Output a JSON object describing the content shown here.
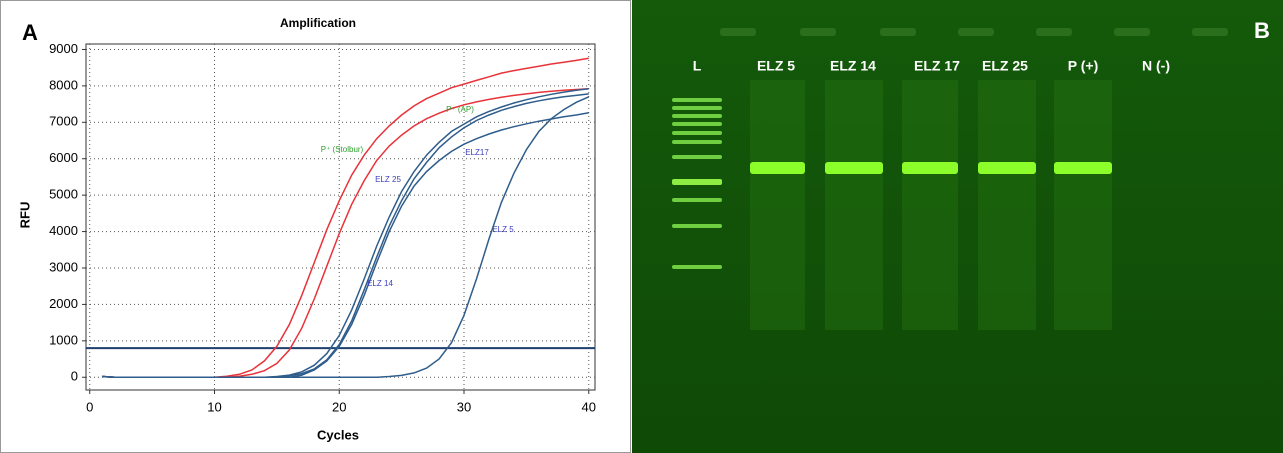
{
  "chart_data": {
    "type": "line",
    "panel_label": "A",
    "title": "Amplification",
    "x_label": "Cycles",
    "y_label": "RFU",
    "x": [
      1,
      2,
      3,
      4,
      5,
      6,
      7,
      8,
      9,
      10,
      11,
      12,
      13,
      14,
      15,
      16,
      17,
      18,
      19,
      20,
      21,
      22,
      23,
      24,
      25,
      26,
      27,
      28,
      29,
      30,
      31,
      32,
      33,
      34,
      35,
      36,
      37,
      38,
      39,
      40
    ],
    "xlim": [
      -0.3,
      40.5
    ],
    "xticks": [
      0,
      10,
      20,
      30,
      40
    ],
    "ylim": [
      -350,
      9150
    ],
    "yticks": [
      0,
      1000,
      2000,
      3000,
      4000,
      5000,
      6000,
      7000,
      8000,
      9000
    ],
    "grid": true,
    "threshold": 800,
    "threshold_color": "#1f3f6e",
    "series": [
      {
        "name": "P⁺ (Stolbur)",
        "color": "#e8333a",
        "label_color": "#2ea02e",
        "values": [
          20,
          0,
          0,
          0,
          0,
          0,
          0,
          0,
          0,
          0,
          30,
          80,
          200,
          450,
          850,
          1450,
          2250,
          3150,
          4050,
          4850,
          5550,
          6100,
          6550,
          6900,
          7200,
          7450,
          7650,
          7800,
          7950,
          8050,
          8150,
          8250,
          8350,
          8420,
          8480,
          8540,
          8600,
          8650,
          8700,
          8760
        ]
      },
      {
        "name": "P⁺ (AP)",
        "color": "#e8333a",
        "label_color": "#2ea02e",
        "values": [
          20,
          0,
          0,
          0,
          0,
          0,
          0,
          0,
          0,
          0,
          0,
          30,
          80,
          180,
          380,
          750,
          1350,
          2150,
          3050,
          3950,
          4750,
          5400,
          5950,
          6350,
          6650,
          6900,
          7100,
          7250,
          7380,
          7480,
          7560,
          7630,
          7690,
          7740,
          7780,
          7820,
          7850,
          7880,
          7900,
          7920
        ]
      },
      {
        "name": "ELZ 25",
        "color": "#2f5d8c",
        "label_color": "#3b3bbf",
        "values": [
          20,
          0,
          0,
          0,
          0,
          0,
          0,
          0,
          0,
          0,
          0,
          0,
          0,
          0,
          20,
          60,
          150,
          330,
          650,
          1150,
          1850,
          2700,
          3600,
          4400,
          5100,
          5650,
          6100,
          6450,
          6750,
          6950,
          7150,
          7300,
          7420,
          7530,
          7620,
          7700,
          7770,
          7830,
          7880,
          7920
        ]
      },
      {
        "name": "ELZ17",
        "color": "#2f5d8c",
        "label_color": "#3b3bbf",
        "values": [
          20,
          0,
          0,
          0,
          0,
          0,
          0,
          0,
          0,
          0,
          0,
          0,
          0,
          0,
          0,
          40,
          100,
          230,
          480,
          900,
          1550,
          2400,
          3300,
          4150,
          4850,
          5450,
          5900,
          6300,
          6600,
          6850,
          7050,
          7200,
          7330,
          7430,
          7520,
          7590,
          7650,
          7700,
          7740,
          7780
        ]
      },
      {
        "name": "ELZ 14",
        "color": "#2f5d8c",
        "label_color": "#3b3bbf",
        "values": [
          20,
          0,
          0,
          0,
          0,
          0,
          0,
          0,
          0,
          0,
          0,
          0,
          0,
          0,
          0,
          0,
          60,
          200,
          450,
          850,
          1450,
          2250,
          3150,
          4000,
          4700,
          5250,
          5650,
          5950,
          6200,
          6400,
          6550,
          6680,
          6790,
          6880,
          6960,
          7030,
          7090,
          7150,
          7200,
          7260
        ]
      },
      {
        "name": "ELZ 5",
        "color": "#2f5d8c",
        "label_color": "#3b3bbf",
        "values": [
          20,
          0,
          0,
          0,
          0,
          0,
          0,
          0,
          0,
          0,
          0,
          0,
          0,
          0,
          0,
          0,
          0,
          0,
          0,
          0,
          0,
          0,
          0,
          20,
          50,
          120,
          250,
          500,
          950,
          1700,
          2700,
          3800,
          4800,
          5600,
          6250,
          6750,
          7100,
          7350,
          7550,
          7700
        ]
      }
    ]
  },
  "gel": {
    "panel_label": "B",
    "lanes": [
      "L",
      "ELZ 5",
      "ELZ 14",
      "ELZ 17",
      "ELZ 25",
      "P (+)",
      "N (-)"
    ]
  }
}
